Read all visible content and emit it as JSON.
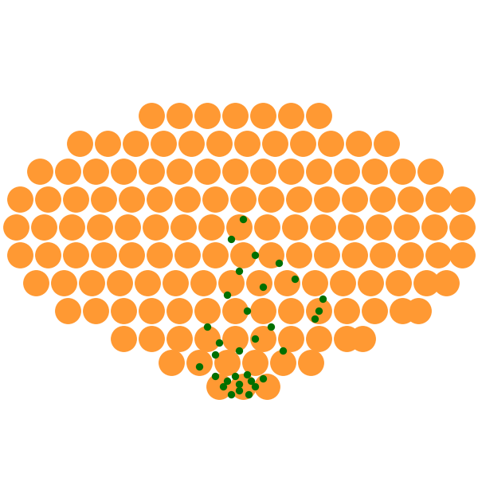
{
  "chart_data": {
    "type": "scatter",
    "tick_labels": false,
    "grid": false,
    "xlim": [
      0,
      600
    ],
    "ylim": [
      0,
      600
    ],
    "series": [
      {
        "color": "#ff9933",
        "marker": "o",
        "x": [
          190,
          225,
          260,
          295,
          330,
          365,
          400,
          100,
          135,
          170,
          205,
          240,
          275,
          310,
          345,
          380,
          415,
          450,
          485,
          50,
          85,
          120,
          155,
          190,
          225,
          260,
          295,
          330,
          365,
          400,
          435,
          470,
          505,
          540,
          25,
          60,
          95,
          130,
          165,
          200,
          235,
          270,
          305,
          340,
          375,
          410,
          445,
          480,
          515,
          550,
          580,
          20,
          55,
          90,
          125,
          160,
          195,
          230,
          265,
          300,
          335,
          370,
          405,
          440,
          475,
          510,
          545,
          580,
          25,
          60,
          95,
          130,
          165,
          200,
          235,
          270,
          305,
          340,
          375,
          410,
          445,
          480,
          515,
          550,
          580,
          45,
          80,
          115,
          150,
          185,
          220,
          255,
          290,
          325,
          360,
          395,
          430,
          465,
          500,
          535,
          560,
          85,
          120,
          155,
          190,
          225,
          260,
          295,
          330,
          365,
          400,
          435,
          470,
          505,
          525,
          155,
          190,
          225,
          260,
          295,
          330,
          365,
          400,
          435,
          455,
          215,
          250,
          285,
          320,
          355,
          390,
          275,
          305,
          335
        ],
        "y": [
          455,
          455,
          455,
          455,
          455,
          455,
          455,
          420,
          420,
          420,
          420,
          420,
          420,
          420,
          420,
          420,
          420,
          420,
          420,
          385,
          385,
          385,
          385,
          385,
          385,
          385,
          385,
          385,
          385,
          385,
          385,
          385,
          385,
          385,
          350,
          350,
          350,
          350,
          350,
          350,
          350,
          350,
          350,
          350,
          350,
          350,
          350,
          350,
          350,
          350,
          350,
          315,
          315,
          315,
          315,
          315,
          315,
          315,
          315,
          315,
          315,
          315,
          315,
          315,
          315,
          315,
          315,
          315,
          280,
          280,
          280,
          280,
          280,
          280,
          280,
          280,
          280,
          280,
          280,
          280,
          280,
          280,
          280,
          280,
          280,
          245,
          245,
          245,
          245,
          245,
          245,
          245,
          245,
          245,
          245,
          245,
          245,
          245,
          245,
          245,
          245,
          210,
          210,
          210,
          210,
          210,
          210,
          210,
          210,
          210,
          210,
          210,
          210,
          210,
          210,
          175,
          175,
          175,
          175,
          175,
          175,
          175,
          175,
          175,
          175,
          145,
          145,
          145,
          145,
          145,
          145,
          115,
          115,
          115
        ]
      },
      {
        "color": "#007000",
        "marker": "o",
        "x": [
          285,
          300,
          315,
          295,
          310,
          280,
          320,
          300,
          270,
          330,
          290,
          312,
          300,
          275,
          320,
          340,
          260,
          310,
          285,
          330,
          300,
          320,
          290,
          305,
          400,
          405,
          395,
          370,
          350,
          270,
          355,
          250
        ],
        "y": [
          122,
          118,
          122,
          128,
          130,
          115,
          115,
          110,
          128,
          125,
          105,
          105,
          160,
          170,
          175,
          190,
          190,
          210,
          230,
          240,
          260,
          280,
          300,
          325,
          210,
          225,
          200,
          250,
          270,
          155,
          160,
          140
        ]
      }
    ]
  }
}
